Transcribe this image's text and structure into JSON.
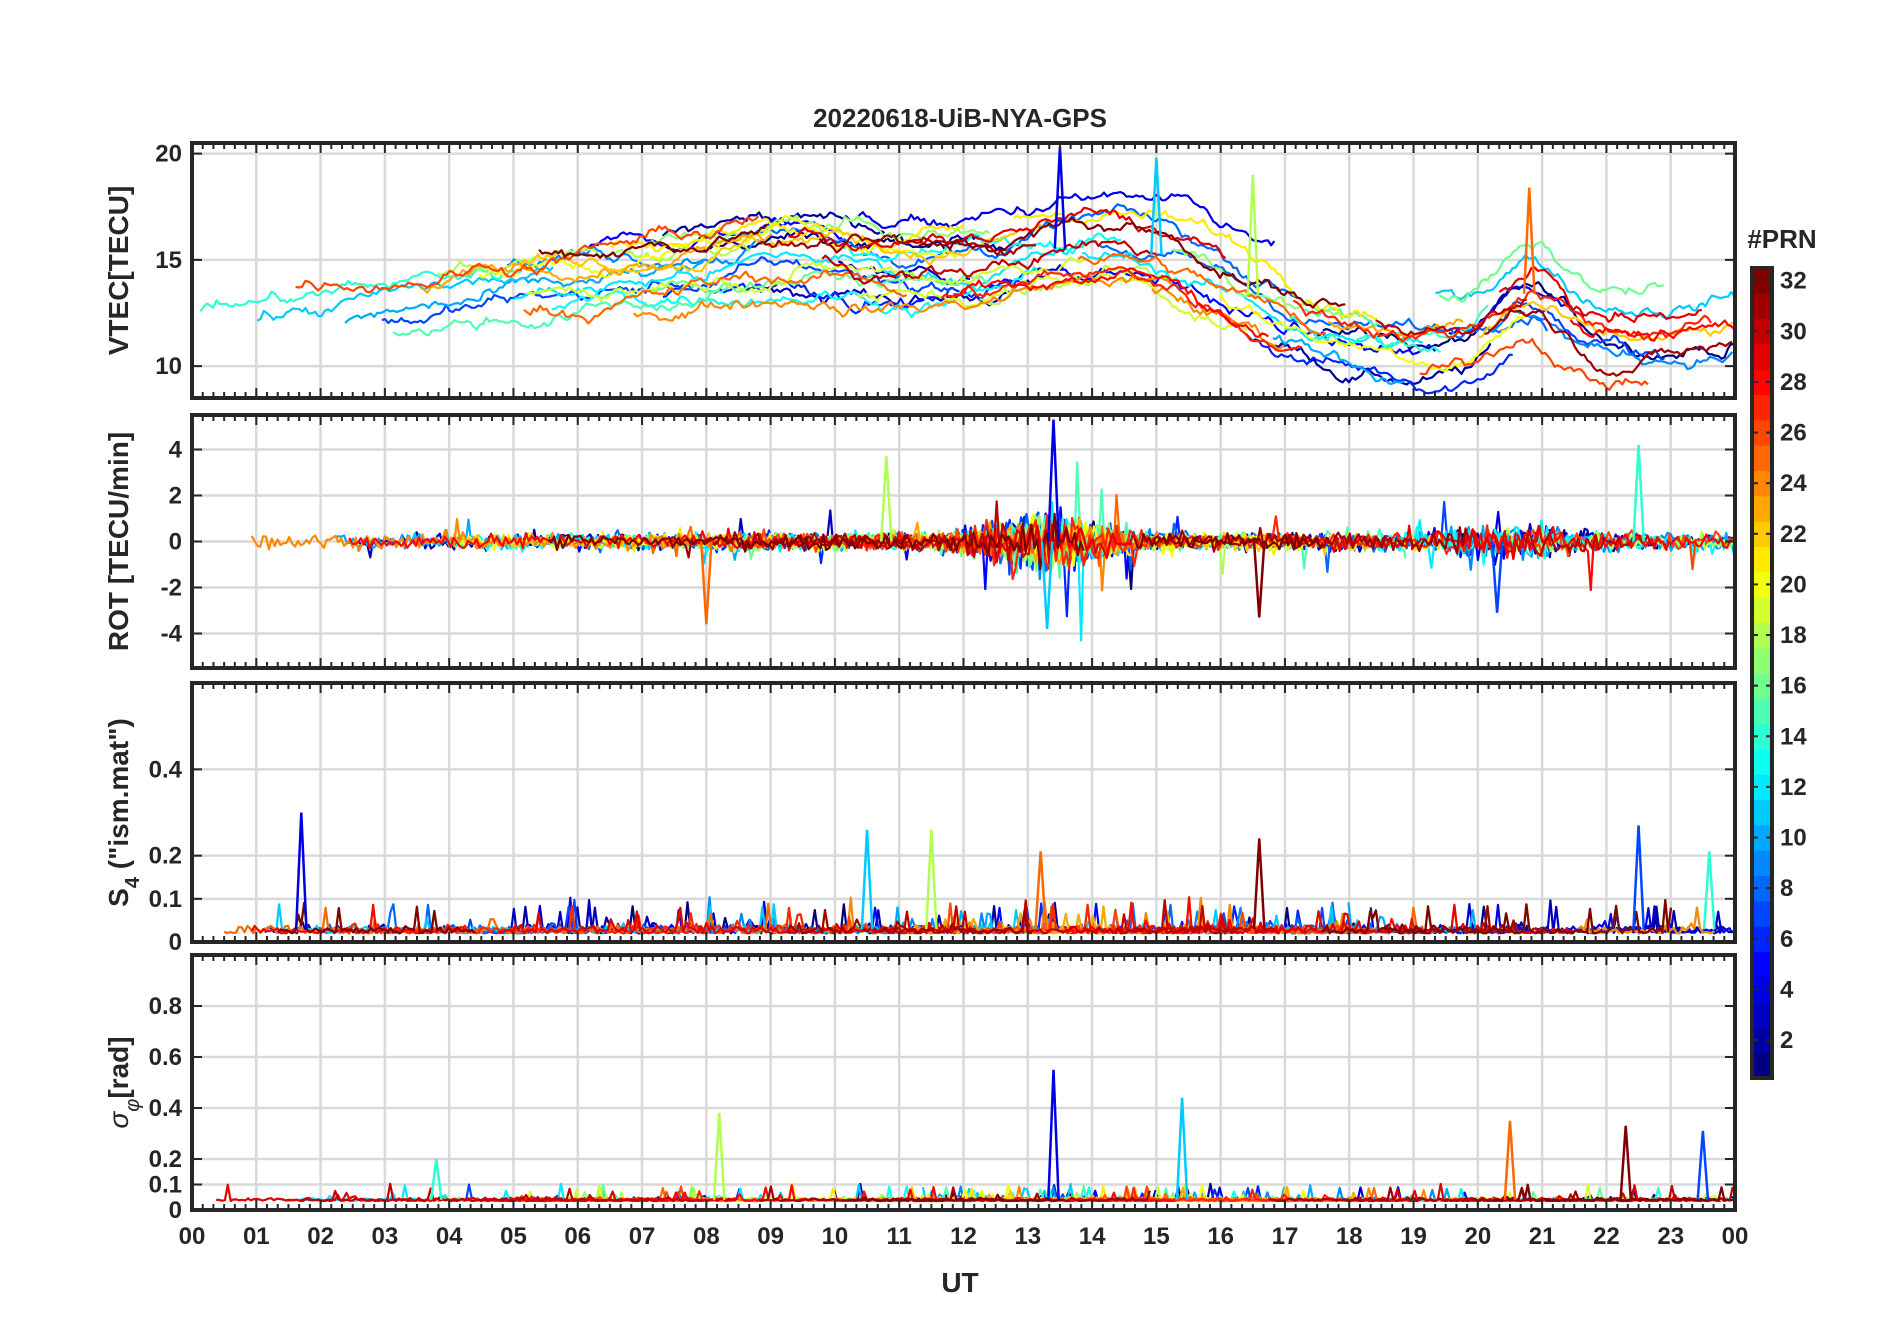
{
  "title": "20220618-UiB-NYA-GPS",
  "xlabel": "UT",
  "x_tick_labels": [
    "00",
    "01",
    "02",
    "03",
    "04",
    "05",
    "06",
    "07",
    "08",
    "09",
    "10",
    "11",
    "12",
    "13",
    "14",
    "15",
    "16",
    "17",
    "18",
    "19",
    "20",
    "21",
    "22",
    "23",
    "00"
  ],
  "colorbar": {
    "title": "#PRN",
    "range": [
      1,
      32
    ],
    "tick_labels": [
      "2",
      "4",
      "6",
      "8",
      "10",
      "12",
      "14",
      "16",
      "18",
      "20",
      "22",
      "24",
      "26",
      "28",
      "30",
      "32"
    ],
    "tick_values": [
      2,
      4,
      6,
      8,
      10,
      12,
      14,
      16,
      18,
      20,
      22,
      24,
      26,
      28,
      30,
      32
    ],
    "colormap": "jet"
  },
  "chart_data": [
    {
      "type": "line",
      "panel": "vtec",
      "ylabel": "VTEC[TECU]",
      "ylim": [
        8.5,
        20.5
      ],
      "y_ticks": [
        10,
        15,
        20
      ],
      "y_tick_labels": [
        "10",
        "15",
        "20"
      ],
      "xlim": [
        0,
        24
      ],
      "x_unit": "hour UT",
      "series_description": "one line per GPS PRN 1-32 colored by PRN; background level 10-18 TECU with peaks near 14-15 UT and 20-21 UT",
      "peaks": [
        {
          "x": 13.5,
          "y": 20.3
        },
        {
          "x": 15.0,
          "y": 19.8
        },
        {
          "x": 16.5,
          "y": 19.0
        },
        {
          "x": 20.8,
          "y": 18.4
        }
      ]
    },
    {
      "type": "line",
      "panel": "rot",
      "ylabel": "ROT [TECU/min]",
      "ylim": [
        -5.5,
        5.5
      ],
      "y_ticks": [
        -4,
        -2,
        0,
        2,
        4
      ],
      "y_tick_labels": [
        "-4",
        "-2",
        "0",
        "2",
        "4"
      ],
      "xlim": [
        0,
        24
      ],
      "peaks": [
        {
          "x": 13.4,
          "y": 5.3
        },
        {
          "x": 13.3,
          "y": -3.8
        },
        {
          "x": 10.8,
          "y": 3.7
        },
        {
          "x": 8.0,
          "y": -3.6
        },
        {
          "x": 16.6,
          "y": -3.3
        },
        {
          "x": 20.3,
          "y": -3.1
        },
        {
          "x": 22.5,
          "y": 4.2
        }
      ]
    },
    {
      "type": "line",
      "panel": "s4",
      "ylabel": "S4 (\"ism.mat\")",
      "ylabel_main": "S",
      "ylabel_sub": "4",
      "ylabel_rest": " (\"ism.mat\")",
      "ylim": [
        0,
        0.6
      ],
      "y_ticks": [
        0,
        0.1,
        0.2,
        0.4
      ],
      "y_tick_labels": [
        "0",
        "0.1",
        "0.2",
        "0.4"
      ],
      "xlim": [
        0,
        24
      ],
      "peaks": [
        {
          "x": 1.7,
          "y": 0.3
        },
        {
          "x": 10.5,
          "y": 0.26
        },
        {
          "x": 11.5,
          "y": 0.26
        },
        {
          "x": 13.2,
          "y": 0.21
        },
        {
          "x": 16.6,
          "y": 0.24
        },
        {
          "x": 22.5,
          "y": 0.27
        },
        {
          "x": 23.6,
          "y": 0.21
        }
      ]
    },
    {
      "type": "line",
      "panel": "sigma_phi",
      "ylabel": "σφ[rad]",
      "ylabel_main": "σ",
      "ylabel_sub": "φ",
      "ylabel_rest": "[rad]",
      "ylim": [
        0,
        1.0
      ],
      "y_ticks": [
        0,
        0.1,
        0.2,
        0.4,
        0.6,
        0.8
      ],
      "y_tick_labels": [
        "0",
        "0.1",
        "0.2",
        "0.4",
        "0.6",
        "0.8"
      ],
      "xlim": [
        0,
        24
      ],
      "peaks": [
        {
          "x": 13.4,
          "y": 0.55
        },
        {
          "x": 15.4,
          "y": 0.44
        },
        {
          "x": 8.2,
          "y": 0.38
        },
        {
          "x": 20.5,
          "y": 0.35
        },
        {
          "x": 22.3,
          "y": 0.33
        },
        {
          "x": 23.5,
          "y": 0.31
        },
        {
          "x": 3.8,
          "y": 0.2
        }
      ]
    }
  ]
}
